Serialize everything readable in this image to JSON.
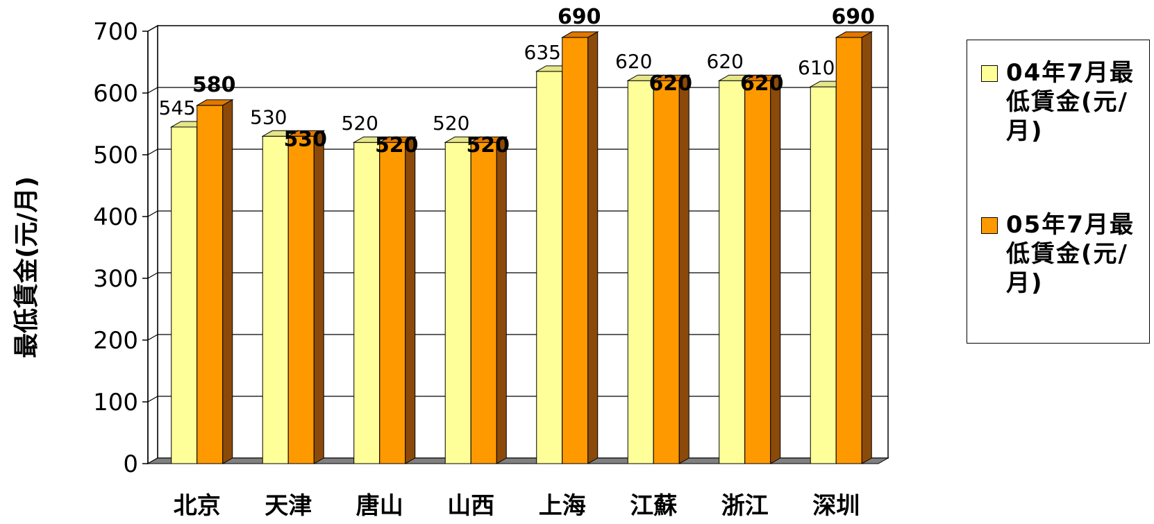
{
  "chart_data": {
    "type": "bar",
    "title": "",
    "xlabel": "",
    "ylabel": "最低賃金(元/月)",
    "ylim": [
      0,
      700
    ],
    "yticks": [
      0,
      100,
      200,
      300,
      400,
      500,
      600,
      700
    ],
    "categories": [
      "北京",
      "天津",
      "唐山",
      "山西",
      "上海",
      "江蘇",
      "浙江",
      "深圳"
    ],
    "series": [
      {
        "name": "04年7月最低賃金(元/月)",
        "values": [
          545,
          530,
          520,
          520,
          635,
          620,
          620,
          610
        ],
        "color": "#FFFF99",
        "top": "#E6E68A",
        "side": "#BFBF70"
      },
      {
        "name": "05年7月最低賃金(元/月)",
        "values": [
          580,
          530,
          520,
          520,
          690,
          620,
          620,
          690
        ],
        "color": "#FF9900",
        "top": "#E07800",
        "side": "#8B4A0A"
      }
    ],
    "grid": true,
    "legend_position": "right",
    "three_d": true
  }
}
